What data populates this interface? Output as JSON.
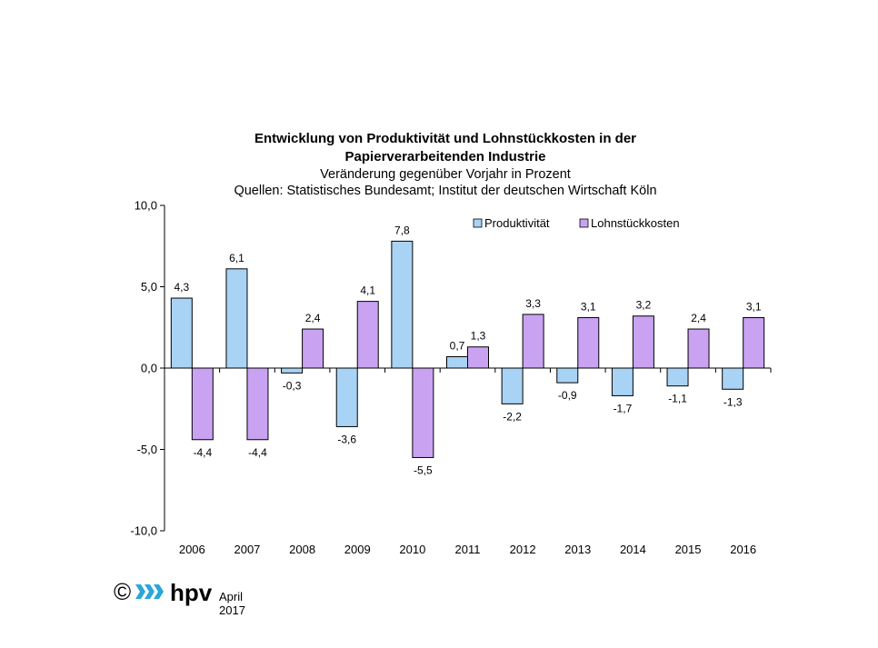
{
  "chart_data": {
    "type": "bar",
    "title": "Entwicklung von Produktivität und Lohnstückkosten in der Papierverarbeitenden Industrie",
    "title_lines": [
      "Entwicklung von Produktivität und Lohnstückkosten in der",
      "Papierverarbeitenden Industrie"
    ],
    "subtitle": "Veränderung gegenüber Vorjahr in Prozent",
    "source": "Quellen:  Statistisches Bundesamt;  Institut der deutschen Wirtschaft Köln",
    "categories": [
      "2006",
      "2007",
      "2008",
      "2009",
      "2010",
      "2011",
      "2012",
      "2013",
      "2014",
      "2015",
      "2016"
    ],
    "series": [
      {
        "name": "Produktivität",
        "color": "#a9d3f5",
        "values": [
          4.3,
          6.1,
          -0.3,
          -3.6,
          7.8,
          0.7,
          -2.2,
          -0.9,
          -1.7,
          -1.1,
          -1.3
        ],
        "labels": [
          "4,3",
          "6,1",
          "-0,3",
          "-3,6",
          "7,8",
          "0,7",
          "-2,2",
          "-0,9",
          "-1,7",
          "-1,1",
          "-1,3"
        ]
      },
      {
        "name": "Lohnstückkosten",
        "color": "#c9a3f2",
        "values": [
          -4.4,
          -4.4,
          2.4,
          4.1,
          -5.5,
          1.3,
          3.3,
          3.1,
          3.2,
          2.4,
          3.1
        ],
        "labels": [
          "-4,4",
          "-4,4",
          "2,4",
          "4,1",
          "-5,5",
          "1,3",
          "3,3",
          "3,1",
          "3,2",
          "2,4",
          "3,1"
        ]
      }
    ],
    "ylim": [
      -10,
      10
    ],
    "yticks": [
      10,
      5,
      0,
      -5,
      -10
    ],
    "ytick_labels": [
      "10,0",
      "5,0",
      "0,0",
      "-5,0",
      "-10,0"
    ],
    "legend_position": "top-right",
    "grid": false
  },
  "footer": {
    "copyright": "©",
    "logo_text": "hpv",
    "date": "April 2017"
  }
}
